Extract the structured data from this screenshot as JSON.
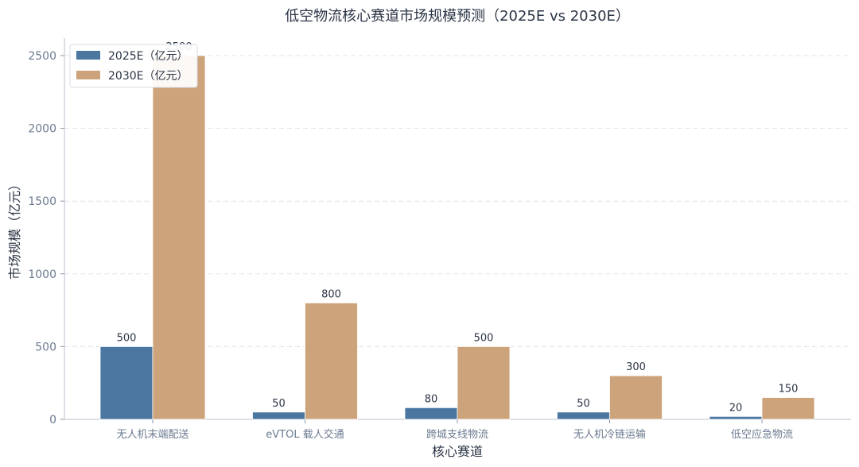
{
  "chart_data": {
    "type": "bar",
    "title": "低空物流核心赛道市场规模预测（2025E vs 2030E）",
    "xlabel": "核心赛道",
    "ylabel": "市场规模（亿元）",
    "categories": [
      "无人机末端配送",
      "eVTOL 载人交通",
      "跨城支线物流",
      "无人机冷链运输",
      "低空应急物流"
    ],
    "series": [
      {
        "name": "2025E（亿元）",
        "color": "#4a76a0",
        "values": [
          500,
          50,
          80,
          50,
          20
        ]
      },
      {
        "name": "2030E（亿元）",
        "color": "#cda37b",
        "values": [
          2500,
          800,
          500,
          300,
          150
        ]
      }
    ],
    "ylim": [
      0,
      2620
    ],
    "yticks": [
      0,
      500,
      1000,
      1500,
      2000,
      2500
    ],
    "grid": true,
    "legend_position": "top-left"
  }
}
